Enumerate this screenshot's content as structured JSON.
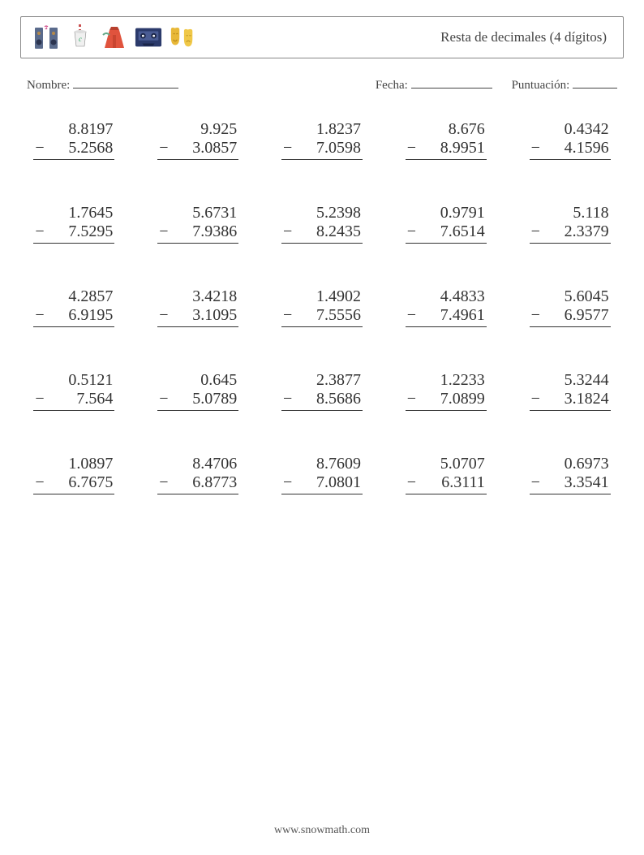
{
  "header": {
    "title": "Resta de decimales (4 dígitos)",
    "icons": [
      "speakers",
      "cup",
      "gate",
      "cassette",
      "masks"
    ]
  },
  "info": {
    "name_label": "Nombre:",
    "date_label": "Fecha:",
    "score_label": "Puntuación:"
  },
  "operation_symbol": "−",
  "problems": [
    [
      {
        "a": "8.8197",
        "b": "5.2568"
      },
      {
        "a": "9.925",
        "b": "3.0857"
      },
      {
        "a": "1.8237",
        "b": "7.0598"
      },
      {
        "a": "8.676",
        "b": "8.9951"
      },
      {
        "a": "0.4342",
        "b": "4.1596"
      }
    ],
    [
      {
        "a": "1.7645",
        "b": "7.5295"
      },
      {
        "a": "5.6731",
        "b": "7.9386"
      },
      {
        "a": "5.2398",
        "b": "8.2435"
      },
      {
        "a": "0.9791",
        "b": "7.6514"
      },
      {
        "a": "5.118",
        "b": "2.3379"
      }
    ],
    [
      {
        "a": "4.2857",
        "b": "6.9195"
      },
      {
        "a": "3.4218",
        "b": "3.1095"
      },
      {
        "a": "1.4902",
        "b": "7.5556"
      },
      {
        "a": "4.4833",
        "b": "7.4961"
      },
      {
        "a": "5.6045",
        "b": "6.9577"
      }
    ],
    [
      {
        "a": "0.5121",
        "b": "7.564"
      },
      {
        "a": "0.645",
        "b": "5.0789"
      },
      {
        "a": "2.3877",
        "b": "8.5686"
      },
      {
        "a": "1.2233",
        "b": "7.0899"
      },
      {
        "a": "5.3244",
        "b": "3.1824"
      }
    ],
    [
      {
        "a": "1.0897",
        "b": "6.7675"
      },
      {
        "a": "8.4706",
        "b": "6.8773"
      },
      {
        "a": "8.7609",
        "b": "7.0801"
      },
      {
        "a": "5.0707",
        "b": "6.3111"
      },
      {
        "a": "0.6973",
        "b": "3.3541"
      }
    ]
  ],
  "footer": "www.snowmath.com",
  "colors": {
    "text": "#333333",
    "border": "#888888",
    "bg": "#ffffff"
  }
}
